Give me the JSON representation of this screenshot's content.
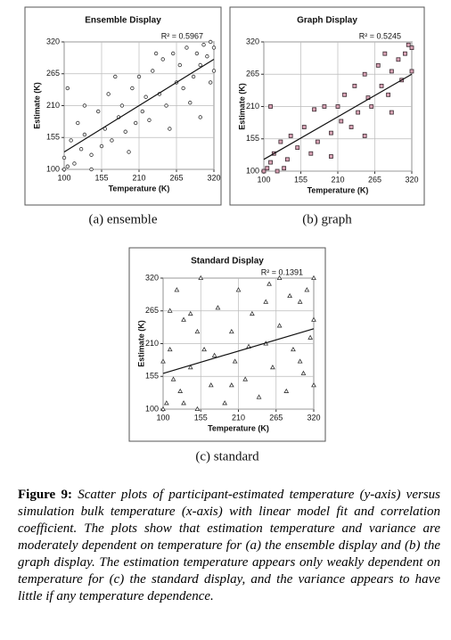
{
  "chart_data": [
    {
      "type": "scatter",
      "title": "Ensemble Display",
      "annotation": "R² = 0.5967",
      "xlabel": "Temperature (K)",
      "ylabel": "Estimate (K)",
      "caption": "(a) ensemble",
      "marker": "circle",
      "color": "#333333",
      "fill": "#ffffff",
      "grid": true,
      "xlim": [
        100,
        320
      ],
      "ylim": [
        100,
        320
      ],
      "xticks": [
        100,
        155,
        210,
        265,
        320
      ],
      "yticks": [
        100,
        155,
        210,
        265,
        320
      ],
      "x": [
        100,
        100,
        105,
        110,
        115,
        120,
        125,
        130,
        140,
        150,
        155,
        160,
        165,
        170,
        180,
        185,
        190,
        200,
        205,
        210,
        215,
        220,
        225,
        230,
        240,
        245,
        250,
        260,
        265,
        270,
        275,
        280,
        290,
        295,
        300,
        305,
        310,
        315,
        320,
        320,
        105,
        140,
        175,
        195,
        235,
        255,
        285,
        300,
        315,
        130
      ],
      "values": [
        100,
        120,
        105,
        150,
        110,
        180,
        135,
        160,
        125,
        200,
        140,
        170,
        230,
        150,
        190,
        210,
        165,
        240,
        180,
        260,
        200,
        225,
        185,
        270,
        230,
        290,
        210,
        300,
        250,
        280,
        240,
        310,
        260,
        300,
        280,
        315,
        295,
        320,
        270,
        310,
        240,
        100,
        260,
        130,
        300,
        170,
        215,
        190,
        250,
        210
      ],
      "trendline": {
        "x": [
          100,
          320
        ],
        "y": [
          130,
          290
        ]
      }
    },
    {
      "type": "scatter",
      "title": "Graph Display",
      "annotation": "R² = 0.5245",
      "xlabel": "Temperature (K)",
      "ylabel": "Estimate (K)",
      "caption": "(b) graph",
      "marker": "square",
      "color": "#3a2a30",
      "fill": "#d9a3b5",
      "grid": true,
      "xlim": [
        100,
        320
      ],
      "ylim": [
        100,
        320
      ],
      "xticks": [
        100,
        155,
        210,
        265,
        320
      ],
      "yticks": [
        100,
        155,
        210,
        265,
        320
      ],
      "x": [
        100,
        105,
        110,
        115,
        120,
        125,
        135,
        140,
        150,
        160,
        170,
        175,
        180,
        190,
        200,
        210,
        215,
        220,
        230,
        235,
        240,
        250,
        255,
        260,
        270,
        275,
        280,
        285,
        290,
        300,
        305,
        310,
        315,
        320,
        320,
        130,
        200,
        250,
        290,
        110
      ],
      "values": [
        100,
        105,
        115,
        130,
        100,
        150,
        120,
        160,
        140,
        175,
        130,
        205,
        150,
        210,
        165,
        210,
        185,
        230,
        175,
        245,
        200,
        265,
        225,
        210,
        280,
        245,
        300,
        230,
        270,
        290,
        255,
        300,
        315,
        310,
        270,
        105,
        125,
        160,
        200,
        210
      ],
      "trendline": {
        "x": [
          100,
          320
        ],
        "y": [
          120,
          265
        ]
      }
    },
    {
      "type": "scatter",
      "title": "Standard Display",
      "annotation": "R² = 0.1391",
      "xlabel": "Temperature (K)",
      "ylabel": "Estimate (K)",
      "caption": "(c) standard",
      "marker": "triangle",
      "color": "#333333",
      "fill": "#ffffff",
      "grid": true,
      "xlim": [
        100,
        320
      ],
      "ylim": [
        100,
        320
      ],
      "xticks": [
        100,
        155,
        210,
        265,
        320
      ],
      "yticks": [
        100,
        155,
        210,
        265,
        320
      ],
      "x": [
        100,
        105,
        110,
        115,
        120,
        125,
        130,
        140,
        150,
        155,
        160,
        170,
        180,
        190,
        200,
        205,
        210,
        220,
        230,
        240,
        250,
        255,
        260,
        270,
        280,
        285,
        290,
        300,
        305,
        310,
        315,
        320,
        320,
        110,
        150,
        200,
        250,
        300,
        130,
        270,
        175,
        225,
        320,
        100,
        140
      ],
      "values": [
        100,
        110,
        200,
        150,
        300,
        130,
        250,
        170,
        100,
        320,
        200,
        140,
        270,
        110,
        230,
        180,
        300,
        150,
        260,
        120,
        210,
        310,
        170,
        240,
        130,
        290,
        200,
        280,
        160,
        300,
        220,
        320,
        250,
        265,
        230,
        140,
        280,
        180,
        110,
        320,
        190,
        205,
        140,
        180,
        260
      ],
      "trendline": {
        "x": [
          100,
          320
        ],
        "y": [
          160,
          235
        ]
      }
    }
  ],
  "figure_caption": {
    "label": "Figure 9:",
    "text": "Scatter plots of participant-estimated temperature (y-axis) versus simulation bulk temperature (x-axis) with linear model fit and correlation coefficient. The plots show that estimation temperature and variance are moderately dependent on temperature for (a) the ensemble display and (b) the graph display. The estimation temperature appears only weakly dependent on temperature for (c) the standard display, and the variance appears to have little if any temperature dependence."
  }
}
